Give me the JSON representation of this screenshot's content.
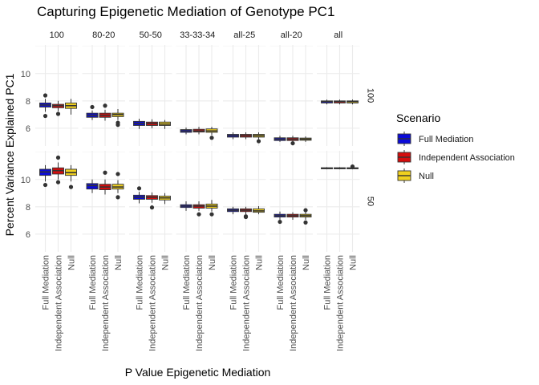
{
  "chart_data": {
    "type": "boxplot",
    "title": "Capturing Epigenetic Mediation of Genotype PC1",
    "xlabel": "P Value Epigenetic Mediation",
    "ylabel": "Percent Variance Explained PC1",
    "legend_title": "Scenario",
    "legend_position": "right",
    "grid": true,
    "categories": [
      "Full Mediation",
      "Independent Association",
      "Null"
    ],
    "colors": {
      "Full Mediation": "#0b0bd9",
      "Independent Association": "#d40d0d",
      "Null": "#f0d01f"
    },
    "col_facets": [
      "100",
      "80-20",
      "50-50",
      "33-33-34",
      "all-25",
      "all-20",
      "all"
    ],
    "row_facets": [
      {
        "label": "100",
        "ylim": [
          4.7,
          12.1
        ],
        "yticks": [
          6,
          8,
          10
        ]
      },
      {
        "label": "50",
        "ylim": [
          4.7,
          12.1
        ],
        "yticks": [
          6,
          8,
          10
        ]
      }
    ],
    "boxes": [
      {
        "row": "100",
        "col": "100",
        "scenario": "Full Mediation",
        "q1": 7.55,
        "median": 7.7,
        "q3": 7.85,
        "whisker_low": 7.2,
        "whisker_high": 8.15,
        "outliers": [
          6.9,
          8.4
        ]
      },
      {
        "row": "100",
        "col": "100",
        "scenario": "Independent Association",
        "q1": 7.5,
        "median": 7.65,
        "q3": 7.75,
        "whisker_low": 7.25,
        "whisker_high": 8.0,
        "outliers": [
          7.05
        ]
      },
      {
        "row": "100",
        "col": "100",
        "scenario": "Null",
        "q1": 7.45,
        "median": 7.65,
        "q3": 7.85,
        "whisker_low": 7.0,
        "whisker_high": 8.15,
        "outliers": []
      },
      {
        "row": "100",
        "col": "80-20",
        "scenario": "Full Mediation",
        "q1": 6.8,
        "median": 6.95,
        "q3": 7.1,
        "whisker_low": 6.6,
        "whisker_high": 7.3,
        "outliers": [
          7.55
        ]
      },
      {
        "row": "100",
        "col": "80-20",
        "scenario": "Independent Association",
        "q1": 6.8,
        "median": 6.95,
        "q3": 7.1,
        "whisker_low": 6.55,
        "whisker_high": 7.35,
        "outliers": [
          7.65
        ]
      },
      {
        "row": "100",
        "col": "80-20",
        "scenario": "Null",
        "q1": 6.85,
        "median": 7.0,
        "q3": 7.1,
        "whisker_low": 6.6,
        "whisker_high": 7.4,
        "outliers": [
          6.4,
          6.25
        ]
      },
      {
        "row": "100",
        "col": "50-50",
        "scenario": "Full Mediation",
        "q1": 6.2,
        "median": 6.35,
        "q3": 6.5,
        "whisker_low": 5.95,
        "whisker_high": 6.7,
        "outliers": []
      },
      {
        "row": "100",
        "col": "50-50",
        "scenario": "Independent Association",
        "q1": 6.2,
        "median": 6.35,
        "q3": 6.45,
        "whisker_low": 6.0,
        "whisker_high": 6.65,
        "outliers": []
      },
      {
        "row": "100",
        "col": "50-50",
        "scenario": "Null",
        "q1": 6.2,
        "median": 6.3,
        "q3": 6.45,
        "whisker_low": 5.95,
        "whisker_high": 6.6,
        "outliers": []
      },
      {
        "row": "100",
        "col": "33-33-34",
        "scenario": "Full Mediation",
        "q1": 5.7,
        "median": 5.8,
        "q3": 5.9,
        "whisker_low": 5.55,
        "whisker_high": 6.05,
        "outliers": []
      },
      {
        "row": "100",
        "col": "33-33-34",
        "scenario": "Independent Association",
        "q1": 5.72,
        "median": 5.8,
        "q3": 5.92,
        "whisker_low": 5.55,
        "whisker_high": 6.1,
        "outliers": []
      },
      {
        "row": "100",
        "col": "33-33-34",
        "scenario": "Null",
        "q1": 5.7,
        "median": 5.8,
        "q3": 5.95,
        "whisker_low": 5.5,
        "whisker_high": 6.1,
        "outliers": [
          5.3
        ]
      },
      {
        "row": "100",
        "col": "all-25",
        "scenario": "Full Mediation",
        "q1": 5.35,
        "median": 5.45,
        "q3": 5.55,
        "whisker_low": 5.2,
        "whisker_high": 5.7,
        "outliers": []
      },
      {
        "row": "100",
        "col": "all-25",
        "scenario": "Independent Association",
        "q1": 5.35,
        "median": 5.45,
        "q3": 5.55,
        "whisker_low": 5.2,
        "whisker_high": 5.7,
        "outliers": []
      },
      {
        "row": "100",
        "col": "all-25",
        "scenario": "Null",
        "q1": 5.35,
        "median": 5.45,
        "q3": 5.55,
        "whisker_low": 5.2,
        "whisker_high": 5.7,
        "outliers": [
          5.05
        ]
      },
      {
        "row": "100",
        "col": "all-20",
        "scenario": "Full Mediation",
        "q1": 5.1,
        "median": 5.2,
        "q3": 5.3,
        "whisker_low": 5.0,
        "whisker_high": 5.45,
        "outliers": []
      },
      {
        "row": "100",
        "col": "all-20",
        "scenario": "Independent Association",
        "q1": 5.1,
        "median": 5.2,
        "q3": 5.3,
        "whisker_low": 4.95,
        "whisker_high": 5.45,
        "outliers": [
          4.9
        ]
      },
      {
        "row": "100",
        "col": "all-20",
        "scenario": "Null",
        "q1": 5.12,
        "median": 5.2,
        "q3": 5.28,
        "whisker_low": 5.0,
        "whisker_high": 5.4,
        "outliers": []
      },
      {
        "row": "100",
        "col": "all",
        "scenario": "Full Mediation",
        "q1": 7.85,
        "median": 7.95,
        "q3": 8.0,
        "whisker_low": 7.75,
        "whisker_high": 8.1,
        "outliers": []
      },
      {
        "row": "100",
        "col": "all",
        "scenario": "Independent Association",
        "q1": 7.85,
        "median": 7.95,
        "q3": 8.0,
        "whisker_low": 7.75,
        "whisker_high": 8.1,
        "outliers": []
      },
      {
        "row": "100",
        "col": "all",
        "scenario": "Null",
        "q1": 7.85,
        "median": 7.95,
        "q3": 8.0,
        "whisker_low": 7.75,
        "whisker_high": 8.1,
        "outliers": []
      },
      {
        "row": "50",
        "col": "100",
        "scenario": "Full Mediation",
        "q1": 10.3,
        "median": 10.55,
        "q3": 10.75,
        "whisker_low": 9.85,
        "whisker_high": 11.05,
        "outliers": [
          9.6
        ]
      },
      {
        "row": "50",
        "col": "100",
        "scenario": "Independent Association",
        "q1": 10.4,
        "median": 10.65,
        "q3": 10.85,
        "whisker_low": 10.0,
        "whisker_high": 11.25,
        "outliers": [
          11.6,
          9.8
        ]
      },
      {
        "row": "50",
        "col": "100",
        "scenario": "Null",
        "q1": 10.3,
        "median": 10.5,
        "q3": 10.75,
        "whisker_low": 9.85,
        "whisker_high": 11.05,
        "outliers": [
          9.45
        ]
      },
      {
        "row": "50",
        "col": "80-20",
        "scenario": "Full Mediation",
        "q1": 9.3,
        "median": 9.55,
        "q3": 9.7,
        "whisker_low": 9.0,
        "whisker_high": 10.0,
        "outliers": []
      },
      {
        "row": "50",
        "col": "80-20",
        "scenario": "Independent Association",
        "q1": 9.25,
        "median": 9.45,
        "q3": 9.65,
        "whisker_low": 8.9,
        "whisker_high": 10.0,
        "outliers": [
          10.5
        ]
      },
      {
        "row": "50",
        "col": "80-20",
        "scenario": "Null",
        "q1": 9.3,
        "median": 9.45,
        "q3": 9.65,
        "whisker_low": 9.0,
        "whisker_high": 9.95,
        "outliers": [
          10.4,
          8.7
        ]
      },
      {
        "row": "50",
        "col": "50-50",
        "scenario": "Full Mediation",
        "q1": 8.55,
        "median": 8.7,
        "q3": 8.85,
        "whisker_low": 8.25,
        "whisker_high": 9.1,
        "outliers": [
          9.35
        ]
      },
      {
        "row": "50",
        "col": "50-50",
        "scenario": "Independent Association",
        "q1": 8.55,
        "median": 8.7,
        "q3": 8.82,
        "whisker_low": 8.3,
        "whisker_high": 9.05,
        "outliers": [
          7.95
        ]
      },
      {
        "row": "50",
        "col": "50-50",
        "scenario": "Null",
        "q1": 8.5,
        "median": 8.65,
        "q3": 8.78,
        "whisker_low": 8.2,
        "whisker_high": 9.0,
        "outliers": []
      },
      {
        "row": "50",
        "col": "33-33-34",
        "scenario": "Full Mediation",
        "q1": 7.95,
        "median": 8.05,
        "q3": 8.15,
        "whisker_low": 7.7,
        "whisker_high": 8.4,
        "outliers": []
      },
      {
        "row": "50",
        "col": "33-33-34",
        "scenario": "Independent Association",
        "q1": 7.9,
        "median": 8.05,
        "q3": 8.15,
        "whisker_low": 7.7,
        "whisker_high": 8.4,
        "outliers": [
          7.45
        ]
      },
      {
        "row": "50",
        "col": "33-33-34",
        "scenario": "Null",
        "q1": 7.9,
        "median": 8.05,
        "q3": 8.2,
        "whisker_low": 7.65,
        "whisker_high": 8.5,
        "outliers": [
          7.45
        ]
      },
      {
        "row": "50",
        "col": "all-25",
        "scenario": "Full Mediation",
        "q1": 7.65,
        "median": 7.75,
        "q3": 7.85,
        "whisker_low": 7.45,
        "whisker_high": 8.0,
        "outliers": []
      },
      {
        "row": "50",
        "col": "all-25",
        "scenario": "Independent Association",
        "q1": 7.65,
        "median": 7.75,
        "q3": 7.85,
        "whisker_low": 7.45,
        "whisker_high": 8.0,
        "outliers": [
          7.3,
          7.25
        ]
      },
      {
        "row": "50",
        "col": "all-25",
        "scenario": "Null",
        "q1": 7.6,
        "median": 7.7,
        "q3": 7.85,
        "whisker_low": 7.45,
        "whisker_high": 8.05,
        "outliers": []
      },
      {
        "row": "50",
        "col": "all-20",
        "scenario": "Full Mediation",
        "q1": 7.25,
        "median": 7.35,
        "q3": 7.45,
        "whisker_low": 7.05,
        "whisker_high": 7.65,
        "outliers": [
          6.9
        ]
      },
      {
        "row": "50",
        "col": "all-20",
        "scenario": "Independent Association",
        "q1": 7.25,
        "median": 7.35,
        "q3": 7.45,
        "whisker_low": 7.05,
        "whisker_high": 7.6,
        "outliers": []
      },
      {
        "row": "50",
        "col": "all-20",
        "scenario": "Null",
        "q1": 7.25,
        "median": 7.35,
        "q3": 7.45,
        "whisker_low": 7.05,
        "whisker_high": 7.6,
        "outliers": [
          7.75,
          6.85
        ]
      },
      {
        "row": "50",
        "col": "all",
        "scenario": "Full Mediation",
        "q1": 10.78,
        "median": 10.82,
        "q3": 10.86,
        "whisker_low": 10.74,
        "whisker_high": 10.9,
        "outliers": []
      },
      {
        "row": "50",
        "col": "all",
        "scenario": "Independent Association",
        "q1": 10.78,
        "median": 10.82,
        "q3": 10.86,
        "whisker_low": 10.74,
        "whisker_high": 10.9,
        "outliers": []
      },
      {
        "row": "50",
        "col": "all",
        "scenario": "Null",
        "q1": 10.78,
        "median": 10.82,
        "q3": 10.86,
        "whisker_low": 10.74,
        "whisker_high": 10.9,
        "outliers": [
          10.95
        ]
      }
    ]
  }
}
